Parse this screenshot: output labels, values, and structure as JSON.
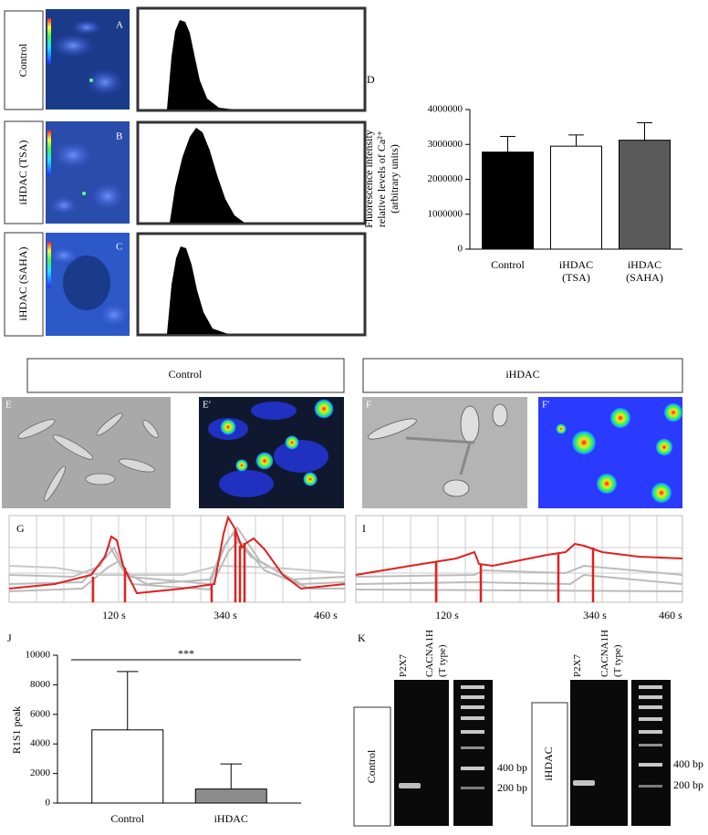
{
  "calcium_panels": {
    "letters": [
      "A",
      "B",
      "C"
    ],
    "labels": [
      "Control",
      "iHDAC (TSA)",
      "iHDAC (SAHA)"
    ]
  },
  "chart_data": [
    {
      "type": "bar",
      "panel": "D",
      "ylabel": "Fluorescence intensity relative levels of Ca²⁺ (arbitrary units)",
      "categories": [
        "Control",
        "iHDAC (TSA)",
        "iHDAC (SAHA)"
      ],
      "values": [
        2780000,
        2950000,
        3120000
      ],
      "errors": [
        450000,
        320000,
        500000
      ],
      "colors": [
        "#000000",
        "#ffffff",
        "#595959"
      ],
      "ylim": [
        0,
        4000000
      ],
      "yticks": [
        0,
        1000000,
        2000000,
        3000000,
        4000000
      ]
    },
    {
      "type": "bar",
      "panel": "J",
      "ylabel": "R1S1 peak",
      "categories": [
        "Control",
        "iHDAC"
      ],
      "values": [
        4950,
        950
      ],
      "errors": [
        3950,
        1700
      ],
      "colors": [
        "#ffffff",
        "#8c8c8c"
      ],
      "ylim": [
        0,
        10000
      ],
      "yticks": [
        0,
        2000,
        4000,
        6000,
        8000,
        10000
      ],
      "annotation": "***"
    }
  ],
  "imaging": {
    "groups": [
      "Control",
      "iHDAC"
    ],
    "letters": [
      "E",
      "E′",
      "F",
      "F′"
    ]
  },
  "traces": [
    {
      "letter": "G",
      "time_labels": [
        "120 s",
        "340 s",
        "460 s"
      ]
    },
    {
      "letter": "I",
      "time_labels": [
        "120 s",
        "340 s",
        "460 s"
      ]
    }
  ],
  "gels": {
    "letter": "K",
    "lanes": [
      "P2X7",
      "CACNA1H (T type)"
    ],
    "samples": [
      {
        "label": "Control",
        "markers": [
          "400 bp",
          "200 bp"
        ]
      },
      {
        "label": "iHDAC",
        "markers": [
          "400 bp",
          "200 bp"
        ]
      }
    ]
  }
}
